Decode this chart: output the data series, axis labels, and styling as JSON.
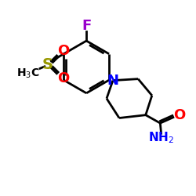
{
  "background_color": "#ffffff",
  "atom_colors": {
    "F": "#9900cc",
    "N": "#0000ff",
    "O": "#ff0000",
    "S": "#999900",
    "C": "#000000",
    "H": "#000000"
  },
  "bond_color": "#000000",
  "bond_width": 2.0,
  "dpi": 100,
  "figsize": [
    2.5,
    2.5
  ]
}
